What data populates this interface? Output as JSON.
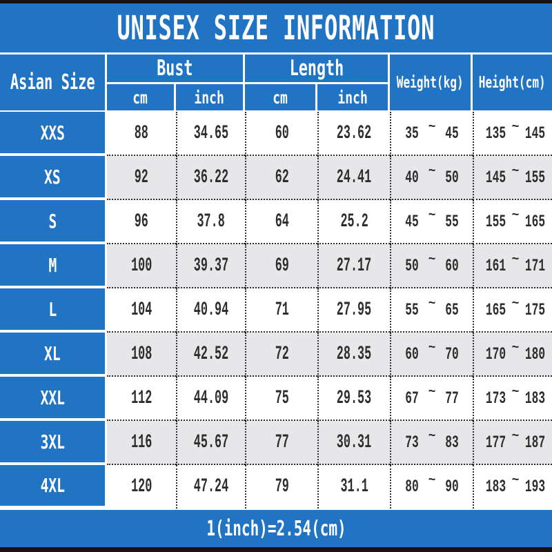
{
  "title": "UNISEX SIZE INFORMATION",
  "header": {
    "asian_size": "Asian Size",
    "bust": "Bust",
    "length": "Length",
    "cm": "cm",
    "inch": "inch",
    "weight": "Weight(kg)",
    "height": "Height(cm)"
  },
  "tilde": "~",
  "footer_note": "1(inch)=2.54(cm)",
  "colors": {
    "header_blue": "#2173c4",
    "alt_row_gray": "#e7e7e9",
    "border_dot": "#2e2e2e",
    "top_bottom_bar": "#141414",
    "text_dark": "#2d2d2d",
    "text_white": "#ffffff"
  },
  "table": {
    "rows": [
      {
        "size": "XXS",
        "bust_cm": "88",
        "bust_inch": "34.65",
        "length_cm": "60",
        "length_inch": "23.62",
        "weight_min": "35",
        "weight_max": "45",
        "height_min": "135",
        "height_max": "145"
      },
      {
        "size": "XS",
        "bust_cm": "92",
        "bust_inch": "36.22",
        "length_cm": "62",
        "length_inch": "24.41",
        "weight_min": "40",
        "weight_max": "50",
        "height_min": "145",
        "height_max": "155"
      },
      {
        "size": "S",
        "bust_cm": "96",
        "bust_inch": "37.8",
        "length_cm": "64",
        "length_inch": "25.2",
        "weight_min": "45",
        "weight_max": "55",
        "height_min": "155",
        "height_max": "165"
      },
      {
        "size": "M",
        "bust_cm": "100",
        "bust_inch": "39.37",
        "length_cm": "69",
        "length_inch": "27.17",
        "weight_min": "50",
        "weight_max": "60",
        "height_min": "161",
        "height_max": "171"
      },
      {
        "size": "L",
        "bust_cm": "104",
        "bust_inch": "40.94",
        "length_cm": "71",
        "length_inch": "27.95",
        "weight_min": "55",
        "weight_max": "65",
        "height_min": "165",
        "height_max": "175"
      },
      {
        "size": "XL",
        "bust_cm": "108",
        "bust_inch": "42.52",
        "length_cm": "72",
        "length_inch": "28.35",
        "weight_min": "60",
        "weight_max": "70",
        "height_min": "170",
        "height_max": "180"
      },
      {
        "size": "XXL",
        "bust_cm": "112",
        "bust_inch": "44.09",
        "length_cm": "75",
        "length_inch": "29.53",
        "weight_min": "67",
        "weight_max": "77",
        "height_min": "173",
        "height_max": "183"
      },
      {
        "size": "3XL",
        "bust_cm": "116",
        "bust_inch": "45.67",
        "length_cm": "77",
        "length_inch": "30.31",
        "weight_min": "73",
        "weight_max": "83",
        "height_min": "177",
        "height_max": "187"
      },
      {
        "size": "4XL",
        "bust_cm": "120",
        "bust_inch": "47.24",
        "length_cm": "79",
        "length_inch": "31.1",
        "weight_min": "80",
        "weight_max": "90",
        "height_min": "183",
        "height_max": "193"
      }
    ]
  },
  "chart_data": {
    "type": "table",
    "title": "UNISEX SIZE INFORMATION",
    "columns": [
      "Asian Size",
      "Bust cm",
      "Bust inch",
      "Length cm",
      "Length inch",
      "Weight(kg)",
      "Height(cm)"
    ],
    "rows": [
      [
        "XXS",
        88,
        34.65,
        60,
        23.62,
        "35~45",
        "135~145"
      ],
      [
        "XS",
        92,
        36.22,
        62,
        24.41,
        "40~50",
        "145~155"
      ],
      [
        "S",
        96,
        37.8,
        64,
        25.2,
        "45~55",
        "155~165"
      ],
      [
        "M",
        100,
        39.37,
        69,
        27.17,
        "50~60",
        "161~171"
      ],
      [
        "L",
        104,
        40.94,
        71,
        27.95,
        "55~65",
        "165~175"
      ],
      [
        "XL",
        108,
        42.52,
        72,
        28.35,
        "60~70",
        "170~180"
      ],
      [
        "XXL",
        112,
        44.09,
        75,
        29.53,
        "67~77",
        "173~183"
      ],
      [
        "3XL",
        116,
        45.67,
        77,
        30.31,
        "73~83",
        "177~187"
      ],
      [
        "4XL",
        120,
        47.24,
        79,
        31.1,
        "80~90",
        "183~193"
      ]
    ],
    "footnote": "1(inch)=2.54(cm)"
  }
}
